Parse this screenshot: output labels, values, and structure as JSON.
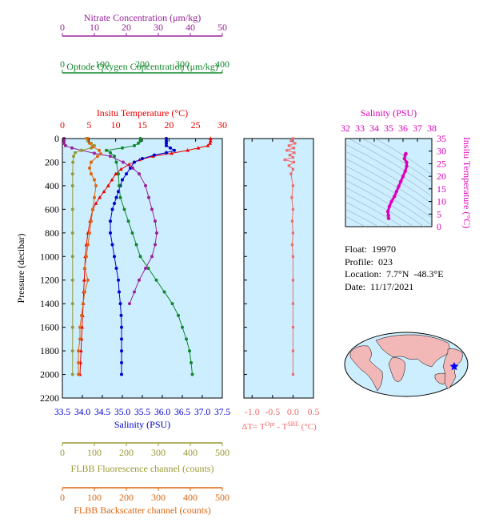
{
  "chart_data": {
    "type": "line",
    "title": "",
    "pressure_axis": {
      "label": "Pressure (decibar)",
      "range": [
        0,
        2200
      ],
      "ticks": [
        0,
        200,
        400,
        600,
        800,
        1000,
        1200,
        1400,
        1600,
        1800,
        2000,
        2200
      ]
    },
    "top_axes": [
      {
        "id": "nitrate",
        "label": "Nitrate Concentration (μm/kg)",
        "range": [
          0,
          50
        ],
        "ticks": [
          0,
          10,
          20,
          30,
          40,
          50
        ],
        "color": "#992299"
      },
      {
        "id": "oxygen",
        "label": "Optode Oxygen Concentration (μm/kg)",
        "range": [
          0,
          400
        ],
        "ticks": [
          0,
          100,
          200,
          300,
          400
        ],
        "color": "#11882a"
      },
      {
        "id": "temperature",
        "label": "Insitu Temperature (°C)",
        "range": [
          0,
          30
        ],
        "ticks": [
          0,
          5,
          10,
          15,
          20,
          25,
          30
        ],
        "color": "#ee0000"
      }
    ],
    "bottom_axes": [
      {
        "id": "salinity",
        "label": "Salinity (PSU)",
        "range": [
          33.5,
          37.5
        ],
        "ticks": [
          "33.5",
          "34.0",
          "34.5",
          "35.0",
          "35.5",
          "36.0",
          "36.5",
          "37.0",
          "37.5"
        ],
        "color": "#0000cc"
      },
      {
        "id": "fluorescence",
        "label": "FLBB Fluorescence channel (counts)",
        "range": [
          0,
          500
        ],
        "ticks": [
          0,
          100,
          200,
          300,
          400,
          500
        ],
        "color": "#999933"
      },
      {
        "id": "backscatter",
        "label": "FLBB Backscatter channel (counts)",
        "range": [
          0,
          500
        ],
        "ticks": [
          0,
          100,
          200,
          300,
          400,
          500
        ],
        "color": "#dd6611"
      }
    ],
    "series": [
      {
        "name": "Temperature",
        "axis": "temperature",
        "color": "#ee0000",
        "marker": "triangle",
        "points": [
          [
            27.8,
            0
          ],
          [
            27.8,
            20
          ],
          [
            27.7,
            40
          ],
          [
            27.3,
            60
          ],
          [
            25.5,
            80
          ],
          [
            23.5,
            100
          ],
          [
            20.5,
            125
          ],
          [
            17,
            150
          ],
          [
            14.5,
            180
          ],
          [
            12.5,
            220
          ],
          [
            11,
            260
          ],
          [
            10,
            300
          ],
          [
            9.3,
            350
          ],
          [
            8.6,
            400
          ],
          [
            7.8,
            450
          ],
          [
            7,
            500
          ],
          [
            6.3,
            550
          ],
          [
            5.7,
            600
          ],
          [
            5.2,
            700
          ],
          [
            4.8,
            800
          ],
          [
            4.5,
            900
          ],
          [
            4.3,
            1000
          ],
          [
            4.2,
            1100
          ],
          [
            4.1,
            1200
          ],
          [
            4,
            1300
          ],
          [
            3.9,
            1400
          ],
          [
            3.8,
            1500
          ],
          [
            3.7,
            1600
          ],
          [
            3.6,
            1700
          ],
          [
            3.5,
            1800
          ],
          [
            3.4,
            1900
          ],
          [
            3.3,
            2000
          ]
        ]
      },
      {
        "name": "Salinity",
        "axis": "salinity",
        "color": "#0000cc",
        "marker": "circle",
        "points": [
          [
            36.1,
            0
          ],
          [
            36.1,
            20
          ],
          [
            36.1,
            40
          ],
          [
            36.1,
            60
          ],
          [
            36.2,
            80
          ],
          [
            36.3,
            100
          ],
          [
            36.1,
            120
          ],
          [
            35.8,
            140
          ],
          [
            35.5,
            170
          ],
          [
            35.3,
            200
          ],
          [
            35.2,
            250
          ],
          [
            35.1,
            300
          ],
          [
            35.0,
            350
          ],
          [
            34.95,
            400
          ],
          [
            34.9,
            450
          ],
          [
            34.85,
            500
          ],
          [
            34.8,
            550
          ],
          [
            34.75,
            600
          ],
          [
            34.7,
            700
          ],
          [
            34.7,
            800
          ],
          [
            34.75,
            900
          ],
          [
            34.8,
            1000
          ],
          [
            34.85,
            1100
          ],
          [
            34.9,
            1200
          ],
          [
            34.92,
            1300
          ],
          [
            34.95,
            1400
          ],
          [
            34.97,
            1500
          ],
          [
            34.98,
            1600
          ],
          [
            34.98,
            1700
          ],
          [
            34.98,
            1800
          ],
          [
            34.98,
            1900
          ],
          [
            34.98,
            2000
          ]
        ]
      },
      {
        "name": "Oxygen",
        "axis": "oxygen",
        "color": "#11882a",
        "marker": "circle",
        "points": [
          [
            195,
            0
          ],
          [
            195,
            20
          ],
          [
            190,
            40
          ],
          [
            180,
            60
          ],
          [
            150,
            80
          ],
          [
            110,
            100
          ],
          [
            120,
            120
          ],
          [
            130,
            150
          ],
          [
            135,
            200
          ],
          [
            140,
            300
          ],
          [
            142,
            400
          ],
          [
            145,
            500
          ],
          [
            155,
            600
          ],
          [
            165,
            700
          ],
          [
            175,
            800
          ],
          [
            185,
            900
          ],
          [
            195,
            1000
          ],
          [
            215,
            1100
          ],
          [
            235,
            1200
          ],
          [
            255,
            1300
          ],
          [
            275,
            1400
          ],
          [
            290,
            1500
          ],
          [
            300,
            1600
          ],
          [
            310,
            1700
          ],
          [
            318,
            1800
          ],
          [
            322,
            1900
          ],
          [
            325,
            2000
          ]
        ]
      },
      {
        "name": "Nitrate",
        "axis": "nitrate",
        "color": "#992299",
        "marker": "circle",
        "points": [
          [
            0.5,
            0
          ],
          [
            0.5,
            20
          ],
          [
            0.5,
            40
          ],
          [
            1,
            60
          ],
          [
            3,
            80
          ],
          [
            6,
            100
          ],
          [
            10,
            125
          ],
          [
            15,
            150
          ],
          [
            19,
            200
          ],
          [
            22,
            250
          ],
          [
            24,
            300
          ],
          [
            26,
            400
          ],
          [
            27,
            500
          ],
          [
            28,
            600
          ],
          [
            29,
            700
          ],
          [
            29.5,
            800
          ],
          [
            29,
            900
          ],
          [
            28,
            1000
          ],
          [
            26,
            1100
          ],
          [
            24,
            1200
          ],
          [
            22.5,
            1300
          ],
          [
            21,
            1400
          ]
        ]
      },
      {
        "name": "Fluorescence",
        "axis": "fluorescence",
        "color": "#999933",
        "marker": "circle",
        "points": [
          [
            75,
            0
          ],
          [
            80,
            20
          ],
          [
            90,
            40
          ],
          [
            100,
            60
          ],
          [
            90,
            80
          ],
          [
            60,
            100
          ],
          [
            40,
            120
          ],
          [
            35,
            150
          ],
          [
            33,
            200
          ],
          [
            32,
            300
          ],
          [
            32,
            400
          ],
          [
            32,
            600
          ],
          [
            32,
            800
          ],
          [
            32,
            1000
          ],
          [
            32,
            1200
          ],
          [
            32,
            1400
          ],
          [
            32,
            1600
          ],
          [
            32,
            1800
          ],
          [
            32,
            2000
          ]
        ]
      },
      {
        "name": "Backscatter",
        "axis": "backscatter",
        "color": "#dd6611",
        "marker": "circle",
        "points": [
          [
            80,
            0
          ],
          [
            85,
            40
          ],
          [
            95,
            70
          ],
          [
            115,
            100
          ],
          [
            120,
            130
          ],
          [
            110,
            150
          ],
          [
            90,
            200
          ],
          [
            85,
            250
          ],
          [
            90,
            300
          ],
          [
            100,
            350
          ],
          [
            105,
            400
          ],
          [
            100,
            500
          ],
          [
            95,
            600
          ],
          [
            90,
            700
          ],
          [
            85,
            800
          ],
          [
            80,
            900
          ],
          [
            75,
            1000
          ],
          [
            70,
            1100
          ],
          [
            80,
            1200
          ],
          [
            70,
            1300
          ],
          [
            65,
            1400
          ],
          [
            60,
            1500
          ],
          [
            55,
            1600
          ],
          [
            55,
            1700
          ],
          [
            50,
            1800
          ],
          [
            50,
            1900
          ],
          [
            50,
            2000
          ]
        ]
      }
    ],
    "delta_panel": {
      "xlabel": "ΔT= TOpt - TSBE (°C)",
      "xlabel_parts": [
        "ΔT= T",
        "Opt",
        " - T",
        "SBE",
        " (°C)"
      ],
      "range": [
        -1.2,
        0.5
      ],
      "ticks": [
        "-1.0",
        "-0.5",
        "0.0",
        "0.5"
      ],
      "color": "#f26a6a",
      "points": [
        [
          0.0,
          0
        ],
        [
          -0.05,
          20
        ],
        [
          0.05,
          40
        ],
        [
          -0.1,
          60
        ],
        [
          0.02,
          80
        ],
        [
          -0.15,
          100
        ],
        [
          0.03,
          120
        ],
        [
          -0.08,
          140
        ],
        [
          0.0,
          160
        ],
        [
          -0.2,
          180
        ],
        [
          0.02,
          200
        ],
        [
          -0.1,
          230
        ],
        [
          0.0,
          260
        ],
        [
          -0.05,
          300
        ],
        [
          0.0,
          400
        ],
        [
          -0.03,
          500
        ],
        [
          0.0,
          600
        ],
        [
          -0.02,
          700
        ],
        [
          0.0,
          800
        ],
        [
          -0.02,
          900
        ],
        [
          0.0,
          1000
        ],
        [
          0.0,
          1200
        ],
        [
          0.0,
          1400
        ],
        [
          0.0,
          1600
        ],
        [
          0.0,
          1800
        ],
        [
          0.0,
          2000
        ]
      ]
    },
    "ts_panel": {
      "title": "Salinity (PSU)",
      "xticks": [
        32,
        33,
        34,
        35,
        36,
        37,
        38
      ],
      "ylabel": "Insitu Temperature (°C)",
      "yticks": [
        0,
        5,
        10,
        15,
        20,
        25,
        30,
        35
      ],
      "color": "#dd00bb",
      "points": [
        [
          35.0,
          3.3
        ],
        [
          34.98,
          4.5
        ],
        [
          34.95,
          6
        ],
        [
          35.05,
          8
        ],
        [
          35.2,
          10
        ],
        [
          35.4,
          12
        ],
        [
          35.55,
          14
        ],
        [
          35.7,
          16
        ],
        [
          35.85,
          18
        ],
        [
          36.0,
          20
        ],
        [
          36.15,
          22
        ],
        [
          36.25,
          24
        ],
        [
          36.25,
          25.5
        ],
        [
          36.1,
          27
        ],
        [
          36.15,
          28.5
        ],
        [
          36.2,
          29
        ]
      ]
    }
  },
  "float_info": {
    "float_label": "Float:",
    "float_value": "19970",
    "profile_label": "Profile:",
    "profile_value": "023",
    "location_label": "Location:",
    "location_value": "7.7°N  -48.3°E",
    "date_label": "Date:",
    "date_value": "11/17/2021"
  },
  "map": {
    "ocean_color": "#cceeff",
    "land_color": "#f2b8b8",
    "marker_color": "#0000ff"
  }
}
